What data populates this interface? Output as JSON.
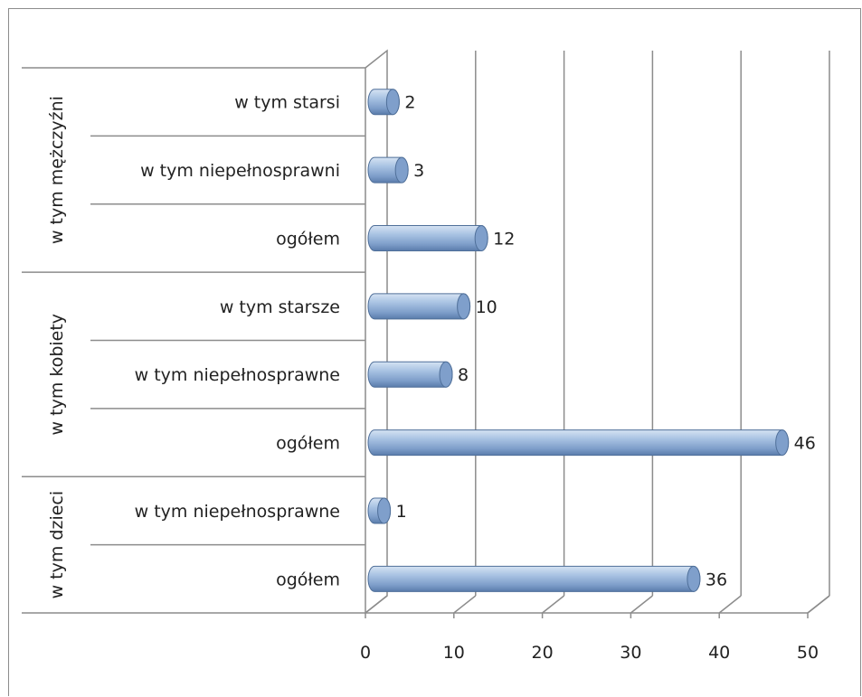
{
  "chart_data": {
    "type": "bar",
    "orientation": "horizontal",
    "style": "3d-cylinder",
    "categories": [
      {
        "group": "w tym mężczyźni",
        "label": "w tym starsi",
        "value": 2
      },
      {
        "group": "w tym mężczyźni",
        "label": "w tym niepełnosprawni",
        "value": 3
      },
      {
        "group": "w tym mężczyźni",
        "label": "ogółem",
        "value": 12
      },
      {
        "group": "w tym kobiety",
        "label": "w tym starsze",
        "value": 10
      },
      {
        "group": "w tym kobiety",
        "label": "w tym niepełnosprawne",
        "value": 8
      },
      {
        "group": "w tym kobiety",
        "label": "ogółem",
        "value": 46
      },
      {
        "group": "w tym dzieci",
        "label": "w tym niepełnosprawne",
        "value": 1
      },
      {
        "group": "w tym dzieci",
        "label": "ogółem",
        "value": 36
      }
    ],
    "groups": [
      "w tym mężczyźni",
      "w tym kobiety",
      "w tym dzieci"
    ],
    "x_ticks": [
      "0",
      "10",
      "20",
      "30",
      "40",
      "50"
    ],
    "xlim": [
      0,
      50
    ],
    "grid": true,
    "legend": "none",
    "colors": {
      "bar": "#95b3d7",
      "bar_dark": "#4f6f99",
      "grid": "#8c8c8c"
    }
  }
}
